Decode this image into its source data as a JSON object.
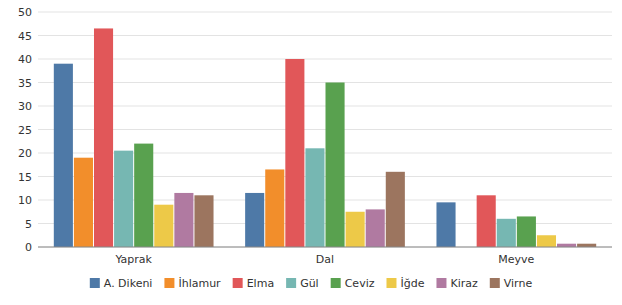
{
  "chart_data": {
    "type": "bar",
    "categories": [
      "Yaprak",
      "Dal",
      "Meyve"
    ],
    "series": [
      {
        "name": "A. Dikeni",
        "color": "#4e79a7",
        "values": [
          39,
          11.5,
          9.5
        ]
      },
      {
        "name": "İhlamur",
        "color": "#f28e2b",
        "values": [
          19,
          16.5,
          0
        ]
      },
      {
        "name": "Elma",
        "color": "#e15759",
        "values": [
          46.5,
          40,
          11
        ]
      },
      {
        "name": "Gül",
        "color": "#76b7b2",
        "values": [
          20.5,
          21,
          6
        ]
      },
      {
        "name": "Ceviz",
        "color": "#59a14f",
        "values": [
          22,
          35,
          6.5
        ]
      },
      {
        "name": "İğde",
        "color": "#edc948",
        "values": [
          9,
          7.5,
          2.5
        ]
      },
      {
        "name": "Kiraz",
        "color": "#b07aa1",
        "values": [
          11.5,
          8,
          0.7
        ]
      },
      {
        "name": "Virne",
        "color": "#9c755f",
        "values": [
          11,
          16,
          0.7
        ]
      }
    ],
    "ylim": [
      0,
      50
    ],
    "yticks": [
      0,
      5,
      10,
      15,
      20,
      25,
      30,
      35,
      40,
      45,
      50
    ],
    "grid": true,
    "legend": "bottom"
  }
}
